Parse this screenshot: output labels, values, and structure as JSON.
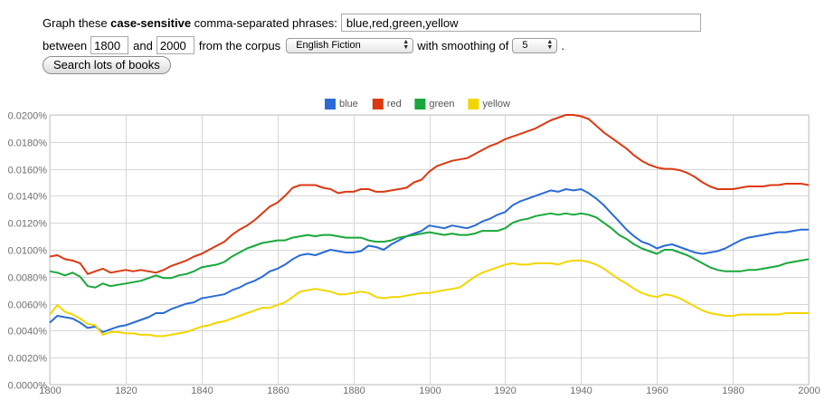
{
  "form": {
    "graph_prefix": "Graph these ",
    "graph_bold": "case-sensitive",
    "graph_suffix": " comma-separated phrases:",
    "phrases_value": "blue,red,green,yellow",
    "between_label": "between",
    "start_year": "1800",
    "and_label": "and",
    "end_year": "2000",
    "from_corpus_label": "from the corpus",
    "corpus_selected": "English Fiction",
    "smoothing_label": "with smoothing of",
    "smoothing_selected": "5",
    "period": ".",
    "search_button": "Search lots of books"
  },
  "chart_data": {
    "type": "line",
    "title": "",
    "xlabel": "",
    "ylabel": "",
    "xlim": [
      1800,
      2000
    ],
    "ylim": [
      0,
      0.02
    ],
    "grid": true,
    "legend_position": "top-center",
    "x_ticks": [
      "1800",
      "1820",
      "1840",
      "1860",
      "1880",
      "1900",
      "1920",
      "1940",
      "1960",
      "1980",
      "2000"
    ],
    "y_ticks": [
      "0.0000%",
      "0.0020%",
      "0.0040%",
      "0.0060%",
      "0.0080%",
      "0.0100%",
      "0.0120%",
      "0.0140%",
      "0.0160%",
      "0.0180%",
      "0.0200%"
    ],
    "x": [
      1800,
      1802,
      1804,
      1806,
      1808,
      1810,
      1812,
      1814,
      1816,
      1818,
      1820,
      1822,
      1824,
      1826,
      1828,
      1830,
      1832,
      1834,
      1836,
      1838,
      1840,
      1842,
      1844,
      1846,
      1848,
      1850,
      1852,
      1854,
      1856,
      1858,
      1860,
      1862,
      1864,
      1866,
      1868,
      1870,
      1872,
      1874,
      1876,
      1878,
      1880,
      1882,
      1884,
      1886,
      1888,
      1890,
      1892,
      1894,
      1896,
      1898,
      1900,
      1902,
      1904,
      1906,
      1908,
      1910,
      1912,
      1914,
      1916,
      1918,
      1920,
      1922,
      1924,
      1926,
      1928,
      1930,
      1932,
      1934,
      1936,
      1938,
      1940,
      1942,
      1944,
      1946,
      1948,
      1950,
      1952,
      1954,
      1956,
      1958,
      1960,
      1962,
      1964,
      1966,
      1968,
      1970,
      1972,
      1974,
      1976,
      1978,
      1980,
      1982,
      1984,
      1986,
      1988,
      1990,
      1992,
      1994,
      1996,
      1998,
      2000
    ],
    "series": [
      {
        "name": "blue",
        "color": "#2a6bd6",
        "values": [
          0.0046,
          0.0051,
          0.005,
          0.0049,
          0.0046,
          0.0042,
          0.0043,
          0.0039,
          0.0041,
          0.0043,
          0.0044,
          0.0046,
          0.0048,
          0.005,
          0.0053,
          0.0053,
          0.0056,
          0.0058,
          0.006,
          0.0061,
          0.0064,
          0.0065,
          0.0066,
          0.0067,
          0.007,
          0.0072,
          0.0075,
          0.0077,
          0.008,
          0.0084,
          0.0086,
          0.0089,
          0.0093,
          0.0096,
          0.0097,
          0.0096,
          0.0098,
          0.01,
          0.0099,
          0.0098,
          0.0098,
          0.0099,
          0.0103,
          0.0102,
          0.01,
          0.0104,
          0.0107,
          0.011,
          0.0112,
          0.0114,
          0.0118,
          0.0117,
          0.0116,
          0.0118,
          0.0117,
          0.0116,
          0.0118,
          0.0121,
          0.0123,
          0.0126,
          0.0128,
          0.0133,
          0.0136,
          0.0138,
          0.014,
          0.0142,
          0.0144,
          0.0143,
          0.0145,
          0.0144,
          0.0145,
          0.0142,
          0.0138,
          0.0133,
          0.0127,
          0.0121,
          0.0115,
          0.011,
          0.0106,
          0.0104,
          0.0101,
          0.0103,
          0.0104,
          0.0102,
          0.01,
          0.0098,
          0.0097,
          0.0098,
          0.0099,
          0.0101,
          0.0104,
          0.0107,
          0.0109,
          0.011,
          0.0111,
          0.0112,
          0.0113,
          0.0113,
          0.0114,
          0.0115,
          0.0115
        ]
      },
      {
        "name": "red",
        "color": "#dc3912",
        "values": [
          0.0095,
          0.0096,
          0.0093,
          0.0092,
          0.009,
          0.0082,
          0.0084,
          0.0086,
          0.0083,
          0.0084,
          0.0085,
          0.0084,
          0.0085,
          0.0084,
          0.0083,
          0.0085,
          0.0088,
          0.009,
          0.0092,
          0.0095,
          0.0097,
          0.01,
          0.0103,
          0.0106,
          0.0111,
          0.0115,
          0.0118,
          0.0122,
          0.0127,
          0.0132,
          0.0135,
          0.014,
          0.0146,
          0.0148,
          0.0148,
          0.0148,
          0.0146,
          0.0145,
          0.0142,
          0.0143,
          0.0143,
          0.0145,
          0.0145,
          0.0143,
          0.0143,
          0.0144,
          0.0145,
          0.0146,
          0.015,
          0.0152,
          0.0158,
          0.0162,
          0.0164,
          0.0166,
          0.0167,
          0.0168,
          0.0171,
          0.0174,
          0.0177,
          0.0179,
          0.0182,
          0.0184,
          0.0186,
          0.0188,
          0.019,
          0.0193,
          0.0196,
          0.0198,
          0.02,
          0.02,
          0.0199,
          0.0197,
          0.0192,
          0.0187,
          0.0183,
          0.0179,
          0.0175,
          0.017,
          0.0166,
          0.0163,
          0.0161,
          0.016,
          0.016,
          0.0159,
          0.0157,
          0.0154,
          0.015,
          0.0147,
          0.0145,
          0.0145,
          0.0145,
          0.0146,
          0.0147,
          0.0147,
          0.0147,
          0.0148,
          0.0148,
          0.0149,
          0.0149,
          0.0149,
          0.0148
        ]
      },
      {
        "name": "green",
        "color": "#18a83a",
        "values": [
          0.0084,
          0.0083,
          0.0081,
          0.0083,
          0.008,
          0.0073,
          0.0072,
          0.0075,
          0.0073,
          0.0074,
          0.0075,
          0.0076,
          0.0077,
          0.0079,
          0.0081,
          0.0079,
          0.0079,
          0.0081,
          0.0082,
          0.0084,
          0.0087,
          0.0088,
          0.0089,
          0.0091,
          0.0095,
          0.0098,
          0.0101,
          0.0103,
          0.0105,
          0.0106,
          0.0107,
          0.0107,
          0.0109,
          0.011,
          0.0111,
          0.011,
          0.0111,
          0.0111,
          0.011,
          0.0109,
          0.0109,
          0.0109,
          0.0107,
          0.0106,
          0.0106,
          0.0107,
          0.0109,
          0.011,
          0.0111,
          0.0112,
          0.0113,
          0.0112,
          0.0111,
          0.0112,
          0.0111,
          0.0111,
          0.0112,
          0.0114,
          0.0114,
          0.0114,
          0.0116,
          0.012,
          0.0122,
          0.0123,
          0.0125,
          0.0126,
          0.0127,
          0.0126,
          0.0127,
          0.0126,
          0.0127,
          0.0126,
          0.0124,
          0.012,
          0.0116,
          0.0111,
          0.0108,
          0.0104,
          0.0101,
          0.0099,
          0.0097,
          0.01,
          0.01,
          0.0098,
          0.0096,
          0.0093,
          0.009,
          0.0087,
          0.0085,
          0.0084,
          0.0084,
          0.0084,
          0.0085,
          0.0085,
          0.0086,
          0.0087,
          0.0088,
          0.009,
          0.0091,
          0.0092,
          0.0093
        ]
      },
      {
        "name": "yellow",
        "color": "#f2d600",
        "values": [
          0.0052,
          0.0059,
          0.0054,
          0.0052,
          0.0049,
          0.0045,
          0.0044,
          0.0037,
          0.0039,
          0.0039,
          0.0038,
          0.0038,
          0.0037,
          0.0037,
          0.0036,
          0.0036,
          0.0037,
          0.0038,
          0.0039,
          0.0041,
          0.0043,
          0.0044,
          0.0046,
          0.0047,
          0.0049,
          0.0051,
          0.0053,
          0.0055,
          0.0057,
          0.0057,
          0.0059,
          0.0061,
          0.0065,
          0.0069,
          0.007,
          0.0071,
          0.007,
          0.0069,
          0.0067,
          0.0067,
          0.0068,
          0.0069,
          0.0068,
          0.0065,
          0.0064,
          0.0065,
          0.0065,
          0.0066,
          0.0067,
          0.0068,
          0.0068,
          0.0069,
          0.007,
          0.0071,
          0.0072,
          0.0076,
          0.008,
          0.0083,
          0.0085,
          0.0087,
          0.0089,
          0.009,
          0.0089,
          0.0089,
          0.009,
          0.009,
          0.009,
          0.0089,
          0.0091,
          0.0092,
          0.0092,
          0.0091,
          0.0089,
          0.0086,
          0.0082,
          0.0078,
          0.0075,
          0.0071,
          0.0068,
          0.0066,
          0.0065,
          0.0067,
          0.0066,
          0.0064,
          0.0061,
          0.0058,
          0.0055,
          0.0053,
          0.0052,
          0.0051,
          0.0051,
          0.0052,
          0.0052,
          0.0052,
          0.0052,
          0.0052,
          0.0052,
          0.0053,
          0.0053,
          0.0053,
          0.0053
        ]
      }
    ]
  }
}
